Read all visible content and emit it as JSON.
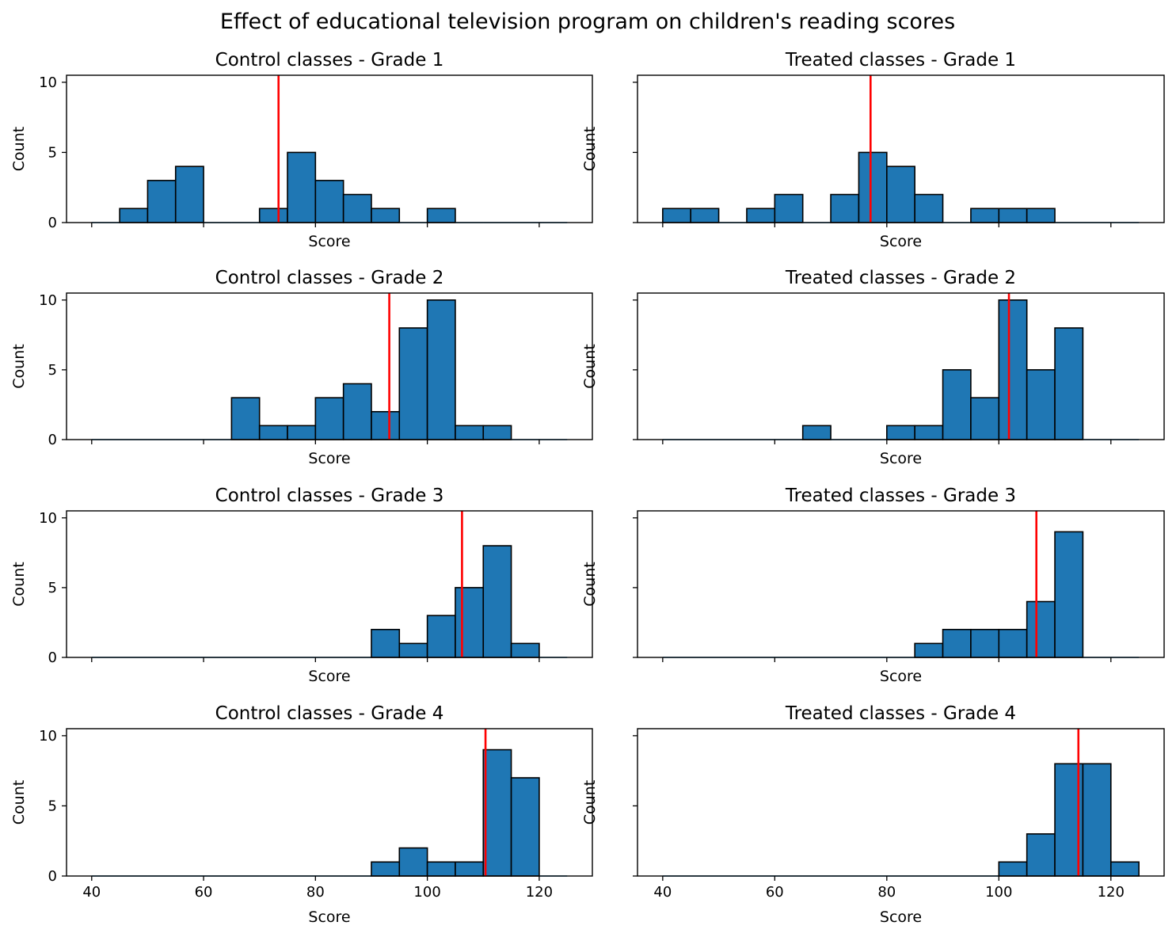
{
  "chart_data": {
    "type": "bar",
    "title": "Effect of educational television program on children's reading scores",
    "bin_edges": [
      40,
      45,
      50,
      55,
      60,
      65,
      70,
      75,
      80,
      85,
      90,
      95,
      100,
      105,
      110,
      115,
      120,
      125
    ],
    "xlim": [
      35.5,
      129.5
    ],
    "ylim": [
      0,
      10.5
    ],
    "xticks": [
      40,
      60,
      80,
      100,
      120
    ],
    "yticks": [
      0,
      5,
      10
    ],
    "grid": false,
    "colors": {
      "bar": "#1f77b4",
      "mean_line": "#ff0000"
    },
    "panels": [
      {
        "title": "Control classes - Grade 1",
        "xlabel": "Score",
        "ylabel": "Count",
        "show_xticklabels": false,
        "show_yticklabels": true,
        "counts": [
          0,
          1,
          3,
          4,
          0,
          0,
          1,
          5,
          3,
          2,
          1,
          0,
          1,
          0,
          0,
          0,
          0
        ],
        "mean": 73.4
      },
      {
        "title": "Treated classes - Grade 1",
        "xlabel": "Score",
        "ylabel": "Count",
        "show_xticklabels": false,
        "show_yticklabels": false,
        "counts": [
          1,
          1,
          0,
          1,
          2,
          0,
          2,
          5,
          4,
          2,
          0,
          1,
          1,
          1,
          0,
          0,
          0
        ],
        "mean": 77.1
      },
      {
        "title": "Control classes - Grade 2",
        "xlabel": "Score",
        "ylabel": "Count",
        "show_xticklabels": false,
        "show_yticklabels": true,
        "counts": [
          0,
          0,
          0,
          0,
          0,
          3,
          1,
          1,
          3,
          4,
          2,
          8,
          10,
          1,
          1,
          0,
          0
        ],
        "mean": 93.2
      },
      {
        "title": "Treated classes - Grade 2",
        "xlabel": "Score",
        "ylabel": "Count",
        "show_xticklabels": false,
        "show_yticklabels": false,
        "counts": [
          0,
          0,
          0,
          0,
          0,
          1,
          0,
          0,
          1,
          1,
          5,
          3,
          10,
          5,
          8,
          0,
          0
        ],
        "mean": 101.8
      },
      {
        "title": "Control classes - Grade 3",
        "xlabel": "Score",
        "ylabel": "Count",
        "show_xticklabels": false,
        "show_yticklabels": true,
        "counts": [
          0,
          0,
          0,
          0,
          0,
          0,
          0,
          0,
          0,
          0,
          2,
          1,
          3,
          5,
          8,
          1,
          0
        ],
        "mean": 106.2
      },
      {
        "title": "Treated classes - Grade 3",
        "xlabel": "Score",
        "ylabel": "Count",
        "show_xticklabels": false,
        "show_yticklabels": false,
        "counts": [
          0,
          0,
          0,
          0,
          0,
          0,
          0,
          0,
          0,
          1,
          2,
          2,
          2,
          4,
          9,
          0,
          0
        ],
        "mean": 106.7
      },
      {
        "title": "Control classes - Grade 4",
        "xlabel": "Score",
        "ylabel": "Count",
        "show_xticklabels": true,
        "show_yticklabels": true,
        "counts": [
          0,
          0,
          0,
          0,
          0,
          0,
          0,
          0,
          0,
          0,
          1,
          2,
          1,
          1,
          9,
          7,
          0
        ],
        "mean": 110.4
      },
      {
        "title": "Treated classes - Grade 4",
        "xlabel": "Score",
        "ylabel": "Count",
        "show_xticklabels": true,
        "show_yticklabels": false,
        "counts": [
          0,
          0,
          0,
          0,
          0,
          0,
          0,
          0,
          0,
          0,
          0,
          0,
          1,
          3,
          8,
          8,
          1
        ],
        "mean": 114.2
      }
    ]
  }
}
